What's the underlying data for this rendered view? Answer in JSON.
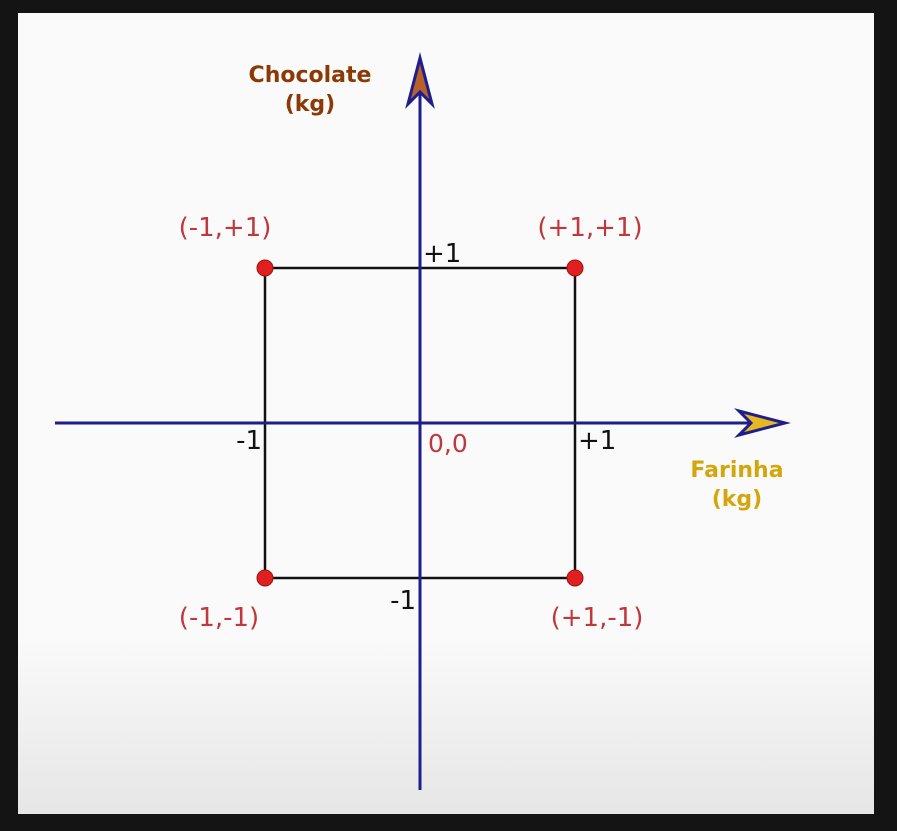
{
  "colors": {
    "background": "#fafafa",
    "frame": "#141414",
    "axis": "#1e1e8c",
    "arrow_y_fill": "#b8622a",
    "arrow_x_fill": "#e8b820",
    "square": "#111111",
    "point": "#e02020",
    "point_label": "#c0373c",
    "tick": "#111111",
    "y_title": "#8b3a06",
    "x_title": "#d4a60c"
  },
  "axes": {
    "y_title_line1": "Chocolate",
    "y_title_line2": "(kg)",
    "x_title_line1": "Farinha",
    "x_title_line2": "(kg)"
  },
  "ticks": {
    "y_pos": "+1",
    "y_neg": "-1",
    "x_pos": "+1",
    "x_neg": "-1",
    "origin": "0,0"
  },
  "points": [
    {
      "x": -1,
      "y": 1,
      "label": "(-1,+1)"
    },
    {
      "x": 1,
      "y": 1,
      "label": "(+1,+1)"
    },
    {
      "x": -1,
      "y": -1,
      "label": "(-1,-1)"
    },
    {
      "x": 1,
      "y": -1,
      "label": "(+1,-1)"
    }
  ]
}
